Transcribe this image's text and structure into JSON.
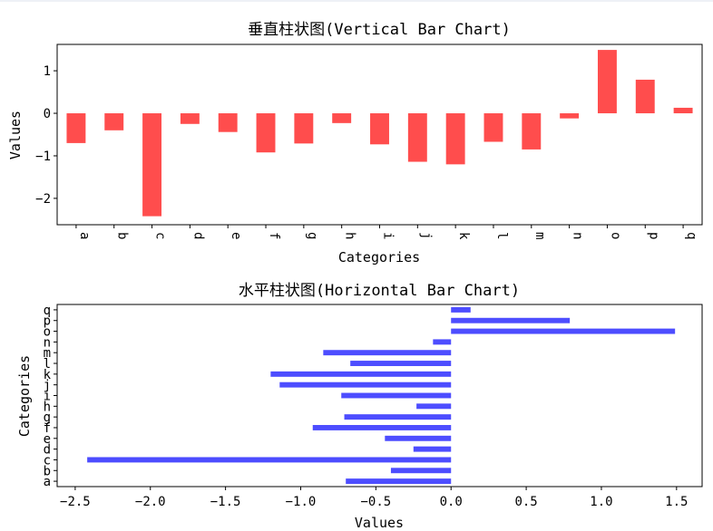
{
  "chart_data": [
    {
      "type": "bar",
      "orientation": "vertical",
      "title": "垂直柱状图(Vertical Bar Chart)",
      "xlabel": "Categories",
      "ylabel": "Values",
      "categories": [
        "a",
        "b",
        "c",
        "d",
        "e",
        "f",
        "g",
        "h",
        "i",
        "j",
        "k",
        "l",
        "m",
        "n",
        "o",
        "p",
        "q"
      ],
      "values": [
        -0.7,
        -0.4,
        -2.42,
        -0.25,
        -0.44,
        -0.92,
        -0.71,
        -0.23,
        -0.73,
        -1.14,
        -1.2,
        -0.67,
        -0.85,
        -0.12,
        1.49,
        0.79,
        0.13
      ],
      "ylim": [
        -2.62,
        1.62
      ],
      "yticks": [
        1,
        0,
        -1,
        -2
      ],
      "ytick_labels": [
        "1",
        "0",
        "−1",
        "−2"
      ],
      "color": "#ff4d4d",
      "grid": false
    },
    {
      "type": "bar",
      "orientation": "horizontal",
      "title": "水平柱状图(Horizontal Bar Chart)",
      "xlabel": "Values",
      "ylabel": "Categories",
      "categories": [
        "a",
        "b",
        "c",
        "d",
        "e",
        "f",
        "g",
        "h",
        "i",
        "j",
        "k",
        "l",
        "m",
        "n",
        "o",
        "p",
        "q"
      ],
      "values": [
        -0.7,
        -0.4,
        -2.42,
        -0.25,
        -0.44,
        -0.92,
        -0.71,
        -0.23,
        -0.73,
        -1.14,
        -1.2,
        -0.67,
        -0.85,
        -0.12,
        1.49,
        0.79,
        0.13
      ],
      "xlim": [
        -2.62,
        1.67
      ],
      "xticks": [
        -2.5,
        -2.0,
        -1.5,
        -1.0,
        -0.5,
        0.0,
        0.5,
        1.0,
        1.5
      ],
      "xtick_labels": [
        "−2.5",
        "−2.0",
        "−1.5",
        "−1.0",
        "−0.5",
        "0.0",
        "0.5",
        "1.0",
        "1.5"
      ],
      "color": "#4d4dff",
      "grid": false
    }
  ]
}
